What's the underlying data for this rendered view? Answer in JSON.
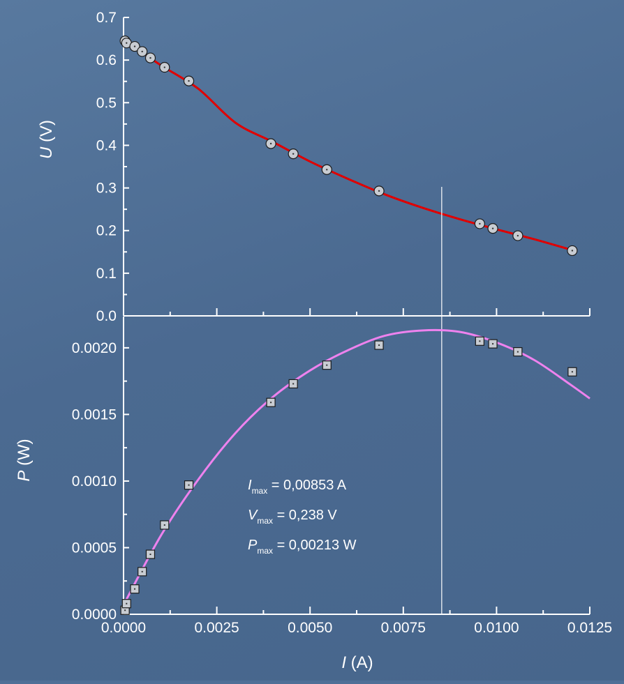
{
  "chart_data": [
    {
      "type": "line",
      "panel": "top",
      "ylabel_var": "U",
      "ylabel_unit": " (V)",
      "ylim": [
        0,
        0.7
      ],
      "yticks": [
        "0.0",
        "0.1",
        "0.2",
        "0.3",
        "0.4",
        "0.5",
        "0.6",
        "0.7"
      ],
      "colors": {
        "fit": "#e00000",
        "marker": "#c8ccd2"
      },
      "series": [
        {
          "kind": "scatter",
          "x": [
            4e-05,
            8e-05,
            0.0003,
            0.0005,
            0.00072,
            0.0011,
            0.00175,
            0.00395,
            0.00455,
            0.00545,
            0.00685,
            0.00955,
            0.0099,
            0.01057,
            0.01203
          ],
          "y": [
            0.645,
            0.64,
            0.632,
            0.62,
            0.605,
            0.583,
            0.551,
            0.404,
            0.38,
            0.343,
            0.293,
            0.216,
            0.205,
            0.188,
            0.153
          ]
        },
        {
          "kind": "line",
          "x": [
            0.0,
            0.001,
            0.002,
            0.003,
            0.004,
            0.005,
            0.006,
            0.007,
            0.008,
            0.009,
            0.01,
            0.011,
            0.012
          ],
          "y": [
            0.648,
            0.588,
            0.533,
            0.453,
            0.408,
            0.362,
            0.322,
            0.285,
            0.254,
            0.227,
            0.203,
            0.18,
            0.155
          ]
        }
      ]
    },
    {
      "type": "line",
      "panel": "bottom",
      "ylabel_var": "P",
      "ylabel_unit": " (W)",
      "xlabel_var": "I",
      "xlabel_unit": " (A)",
      "xlim": [
        0,
        0.0125
      ],
      "ylim": [
        0,
        0.00213
      ],
      "xticks": [
        "0.0000",
        "0.0025",
        "0.0050",
        "0.0075",
        "0.0100",
        "0.0125"
      ],
      "yticks": [
        "0.0000",
        "0.0005",
        "0.0010",
        "0.0015",
        "0.0020"
      ],
      "colors": {
        "fit": "#ee82ee",
        "marker": "#c8ccd2"
      },
      "series": [
        {
          "kind": "scatter",
          "x": [
            4e-05,
            8e-05,
            0.0003,
            0.0005,
            0.00072,
            0.0011,
            0.00175,
            0.00395,
            0.00455,
            0.00545,
            0.00685,
            0.00955,
            0.0099,
            0.01057,
            0.01203
          ],
          "y": [
            3e-05,
            8e-05,
            0.00019,
            0.00032,
            0.00045,
            0.00067,
            0.00097,
            0.00159,
            0.00173,
            0.00187,
            0.00202,
            0.00205,
            0.00203,
            0.00197,
            0.00182
          ]
        },
        {
          "kind": "line",
          "x": [
            0.0,
            0.001,
            0.002,
            0.003,
            0.004,
            0.005,
            0.006,
            0.007,
            0.008,
            0.009,
            0.01,
            0.011,
            0.012,
            0.0125
          ],
          "y": [
            7e-05,
            0.00059,
            0.00101,
            0.00136,
            0.00163,
            0.00183,
            0.00198,
            0.00209,
            0.00213,
            0.00212,
            0.00204,
            0.00191,
            0.00172,
            0.00162
          ]
        }
      ],
      "vline_x": 0.00853,
      "annotations": [
        {
          "var": "I",
          "sub": "max",
          "text": " = 0,00853 A"
        },
        {
          "var": "V",
          "sub": "max",
          "text": " = 0,238 V"
        },
        {
          "var": "P",
          "sub": "max",
          "text": " = 0,00213 W"
        }
      ]
    }
  ]
}
